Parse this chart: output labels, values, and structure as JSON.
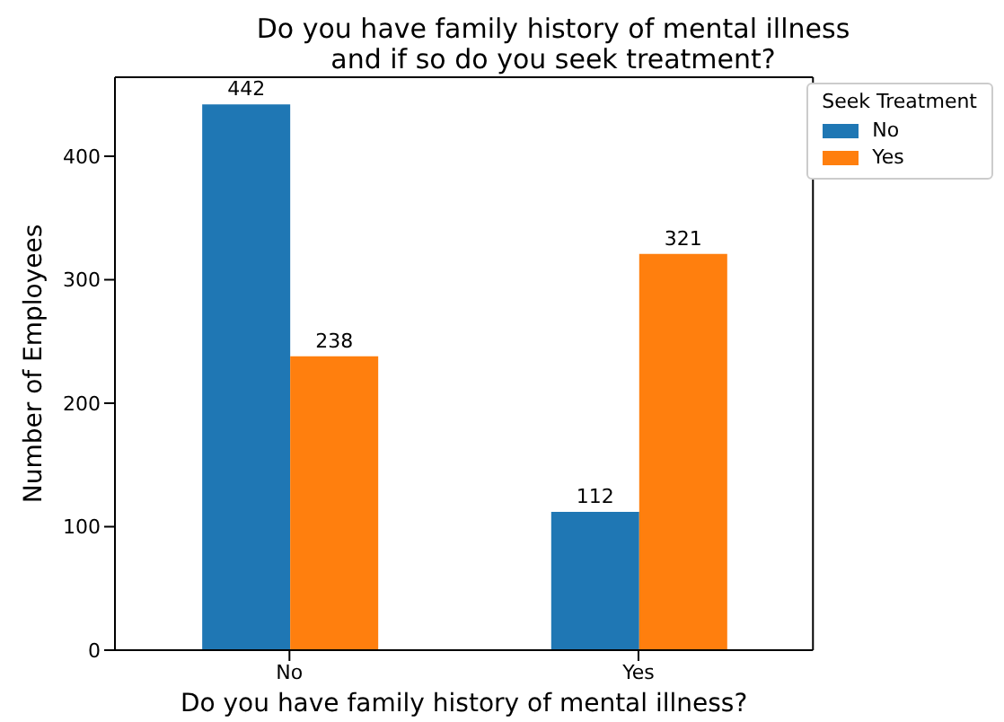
{
  "chart_data": {
    "type": "bar",
    "title": "Do you have family history of mental illness\nand if so do you seek treatment?",
    "xlabel": "Do you have family history of mental illness?",
    "ylabel": "Number of Employees",
    "categories": [
      "No",
      "Yes"
    ],
    "series": [
      {
        "name": "No",
        "color": "#1f77b4",
        "values": [
          442,
          112
        ]
      },
      {
        "name": "Yes",
        "color": "#ff7f0e",
        "values": [
          238,
          321
        ]
      }
    ],
    "ylim": [
      0,
      464
    ],
    "yticks": [
      0,
      100,
      200,
      300,
      400
    ],
    "data_labels": true,
    "legend": "top right",
    "legend_title": "Seek Treatment",
    "grid": false
  }
}
